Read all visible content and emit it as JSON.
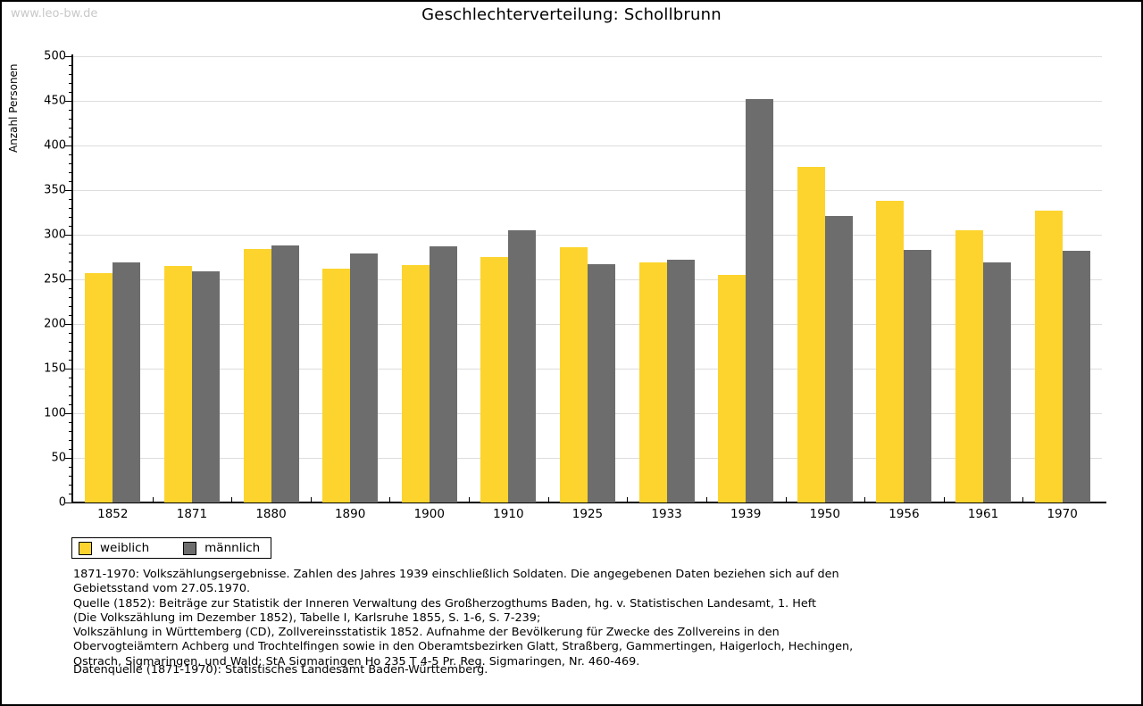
{
  "watermark": "www.leo-bw.de",
  "title": "Geschlechterverteilung: Schollbrunn",
  "colors": {
    "weiblich": "#fcd42d",
    "maennlich": "#6d6d6d",
    "grid": "#dddddd",
    "axis": "#000000",
    "watermark": "#c8c8c8"
  },
  "chart_data": {
    "type": "bar",
    "title": "Geschlechterverteilung: Schollbrunn",
    "xlabel": "",
    "ylabel": "Anzahl Personen",
    "ylim": [
      0,
      500
    ],
    "ytick_major_step": 50,
    "ytick_minor_step": 10,
    "grid": true,
    "legend_position": "bottom-left",
    "categories": [
      "1852",
      "1871",
      "1880",
      "1890",
      "1900",
      "1910",
      "1925",
      "1933",
      "1939",
      "1950",
      "1956",
      "1961",
      "1970"
    ],
    "series": [
      {
        "name": "weiblich",
        "color": "#fcd42d",
        "values": [
          257,
          265,
          284,
          262,
          266,
          275,
          286,
          269,
          255,
          376,
          338,
          305,
          327
        ]
      },
      {
        "name": "männlich",
        "color": "#6d6d6d",
        "values": [
          269,
          259,
          288,
          279,
          287,
          305,
          267,
          272,
          452,
          321,
          283,
          269,
          282
        ]
      }
    ]
  },
  "legend": {
    "items": [
      {
        "label": "weiblich",
        "color": "#fcd42d"
      },
      {
        "label": "männlich",
        "color": "#6d6d6d"
      }
    ]
  },
  "footnotes": {
    "lines": [
      "1871-1970: Volkszählungsergebnisse. Zahlen des Jahres 1939 einschließlich Soldaten. Die angegebenen Daten beziehen sich auf den",
      "Gebietsstand vom 27.05.1970.",
      "Quelle (1852): Beiträge zur Statistik der Inneren Verwaltung des Großherzogthums Baden, hg. v. Statistischen Landesamt, 1. Heft",
      "(Die Volkszählung im Dezember 1852), Tabelle I, Karlsruhe 1855, S. 1-6, S. 7-239;",
      "Volkszählung in Württemberg (CD), Zollvereinsstatistik 1852. Aufnahme der Bevölkerung für Zwecke des Zollvereins in den",
      "Obervogteiämtern Achberg und Trochtelfingen sowie in den Oberamtsbezirken Glatt, Straßberg, Gammertingen, Haigerloch, Hechingen,",
      "Ostrach, Sigmaringen, und Wald; StA Sigmaringen Ho 235 T 4-5 Pr. Reg. Sigmaringen, Nr. 460-469."
    ],
    "datasource": "Datenquelle (1871-1970): Statistisches Landesamt Baden-Württemberg."
  }
}
